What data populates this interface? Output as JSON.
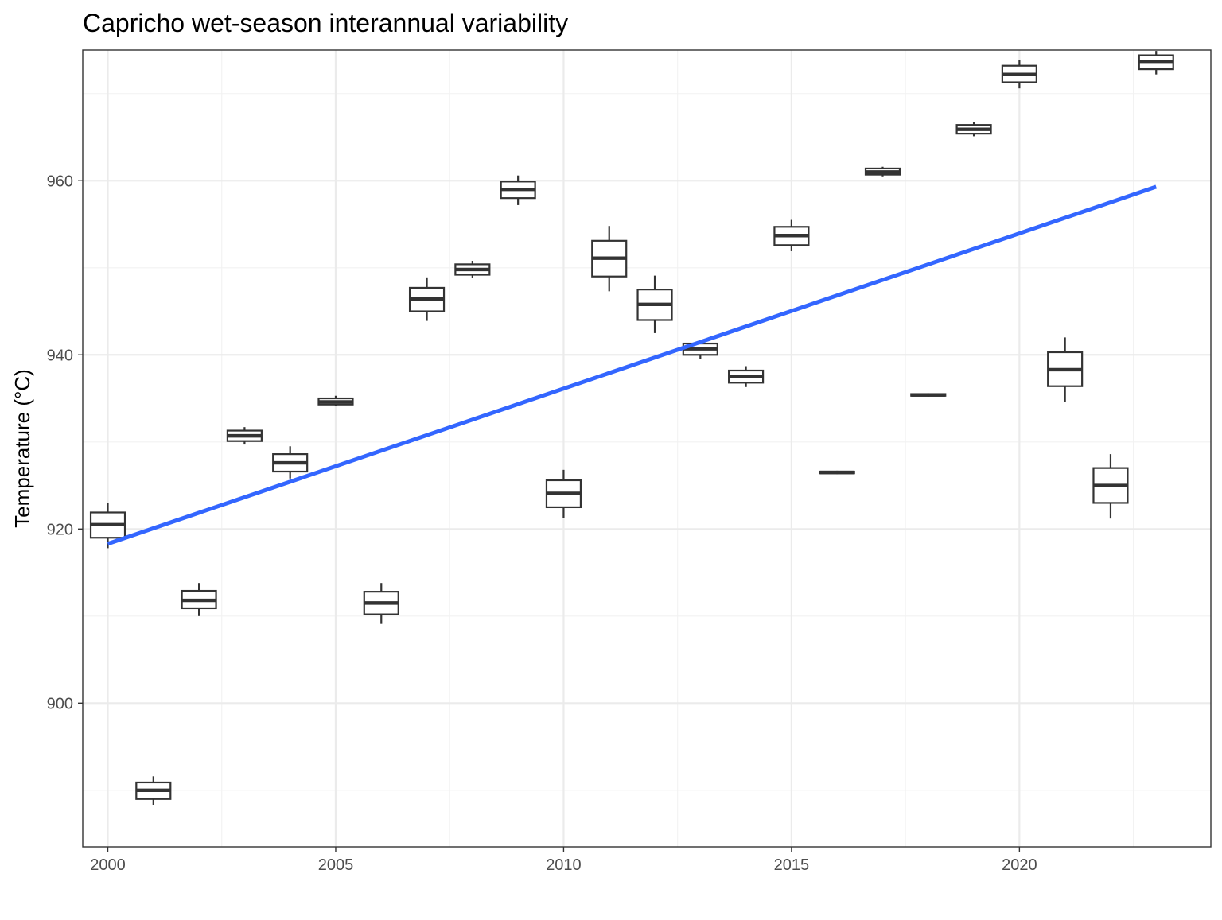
{
  "chart_data": {
    "type": "boxplot",
    "title": "Capricho wet-season interannual variability",
    "xlabel": "",
    "ylabel": "Temperature (°C)",
    "xlim": [
      1999.45,
      2024.2
    ],
    "ylim": [
      883.5,
      975
    ],
    "x_ticks": [
      2000,
      2005,
      2010,
      2015,
      2020
    ],
    "y_ticks": [
      900,
      920,
      940,
      960
    ],
    "grid": true,
    "legend": "none",
    "colors": {
      "box_outline": "#333333",
      "trend": "#3366ff",
      "grid": "#ebebeb",
      "text": "#4d4d4d"
    },
    "boxes": [
      {
        "year": 2000,
        "min": 917.8,
        "q1": 919.0,
        "median": 920.5,
        "q3": 921.9,
        "max": 923.0
      },
      {
        "year": 2001,
        "min": 888.3,
        "q1": 889.0,
        "median": 890.0,
        "q3": 890.9,
        "max": 891.6
      },
      {
        "year": 2002,
        "min": 910.0,
        "q1": 910.9,
        "median": 911.8,
        "q3": 912.9,
        "max": 913.8
      },
      {
        "year": 2003,
        "min": 929.7,
        "q1": 930.1,
        "median": 930.7,
        "q3": 931.3,
        "max": 931.7
      },
      {
        "year": 2004,
        "min": 925.8,
        "q1": 926.6,
        "median": 927.6,
        "q3": 928.6,
        "max": 929.5
      },
      {
        "year": 2005,
        "min": 934.1,
        "q1": 934.3,
        "median": 934.6,
        "q3": 935.0,
        "max": 935.3
      },
      {
        "year": 2006,
        "min": 909.1,
        "q1": 910.2,
        "median": 911.5,
        "q3": 912.8,
        "max": 913.8
      },
      {
        "year": 2007,
        "min": 943.9,
        "q1": 945.0,
        "median": 946.4,
        "q3": 947.7,
        "max": 948.9
      },
      {
        "year": 2008,
        "min": 948.8,
        "q1": 949.2,
        "median": 949.8,
        "q3": 950.4,
        "max": 950.8
      },
      {
        "year": 2009,
        "min": 957.2,
        "q1": 958.0,
        "median": 959.0,
        "q3": 959.9,
        "max": 960.6
      },
      {
        "year": 2010,
        "min": 921.3,
        "q1": 922.5,
        "median": 924.1,
        "q3": 925.6,
        "max": 926.8
      },
      {
        "year": 2011,
        "min": 947.3,
        "q1": 949.0,
        "median": 951.1,
        "q3": 953.1,
        "max": 954.8
      },
      {
        "year": 2012,
        "min": 942.5,
        "q1": 944.0,
        "median": 945.8,
        "q3": 947.5,
        "max": 949.1
      },
      {
        "year": 2013,
        "min": 939.5,
        "q1": 940.0,
        "median": 940.7,
        "q3": 941.3,
        "max": 941.7
      },
      {
        "year": 2014,
        "min": 936.3,
        "q1": 936.8,
        "median": 937.5,
        "q3": 938.2,
        "max": 938.7
      },
      {
        "year": 2015,
        "min": 951.9,
        "q1": 952.6,
        "median": 953.7,
        "q3": 954.7,
        "max": 955.5
      },
      {
        "year": 2016,
        "min": 926.3,
        "q1": 926.4,
        "median": 926.5,
        "q3": 926.6,
        "max": 926.7
      },
      {
        "year": 2017,
        "min": 960.5,
        "q1": 960.7,
        "median": 961.0,
        "q3": 961.4,
        "max": 961.6
      },
      {
        "year": 2018,
        "min": 935.2,
        "q1": 935.3,
        "median": 935.4,
        "q3": 935.5,
        "max": 935.6
      },
      {
        "year": 2019,
        "min": 965.1,
        "q1": 965.4,
        "median": 965.9,
        "q3": 966.4,
        "max": 966.7
      },
      {
        "year": 2020,
        "min": 970.6,
        "q1": 971.3,
        "median": 972.2,
        "q3": 973.2,
        "max": 973.9
      },
      {
        "year": 2021,
        "min": 934.6,
        "q1": 936.4,
        "median": 938.3,
        "q3": 940.3,
        "max": 942.0
      },
      {
        "year": 2022,
        "min": 921.2,
        "q1": 923.0,
        "median": 925.0,
        "q3": 927.0,
        "max": 928.6
      },
      {
        "year": 2023,
        "min": 972.2,
        "q1": 972.8,
        "median": 973.7,
        "q3": 974.4,
        "max": 974.9
      }
    ],
    "box_width_years": 0.75,
    "trend": {
      "method": "linear",
      "x": [
        2000,
        2023
      ],
      "y": [
        918.3,
        959.3
      ]
    }
  }
}
